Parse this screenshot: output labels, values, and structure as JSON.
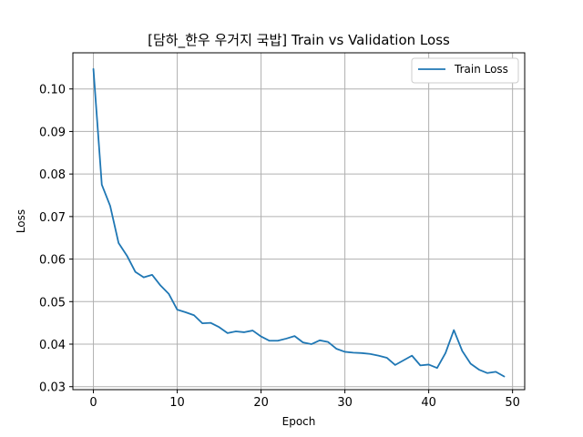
{
  "chart_data": {
    "type": "line",
    "title": "[담하_한우 우거지 국밥] Train vs Validation Loss",
    "xlabel": "Epoch",
    "ylabel": "Loss",
    "xlim": [
      -2.45,
      51.45
    ],
    "ylim": [
      0.0293,
      0.1085
    ],
    "xticks": [
      0,
      10,
      20,
      30,
      40,
      50
    ],
    "yticks": [
      0.03,
      0.04,
      0.05,
      0.06,
      0.07,
      0.08,
      0.09,
      0.1
    ],
    "ytick_labels": [
      "0.03",
      "0.04",
      "0.05",
      "0.06",
      "0.07",
      "0.08",
      "0.09",
      "0.10"
    ],
    "grid": true,
    "legend_position": "upper-right",
    "series": [
      {
        "name": "Train Loss",
        "color": "#1f77b4",
        "x": [
          0,
          1,
          2,
          3,
          4,
          5,
          6,
          7,
          8,
          9,
          10,
          11,
          12,
          13,
          14,
          15,
          16,
          17,
          18,
          19,
          20,
          21,
          22,
          23,
          24,
          25,
          26,
          27,
          28,
          29,
          30,
          31,
          32,
          33,
          34,
          35,
          36,
          37,
          38,
          39,
          40,
          41,
          42,
          43,
          44,
          45,
          46,
          47,
          48,
          49
        ],
        "values": [
          0.1047,
          0.0775,
          0.0725,
          0.0638,
          0.0608,
          0.057,
          0.0557,
          0.0563,
          0.0538,
          0.0518,
          0.0481,
          0.0475,
          0.0468,
          0.0449,
          0.045,
          0.044,
          0.0426,
          0.043,
          0.0428,
          0.0432,
          0.0418,
          0.0408,
          0.0408,
          0.0413,
          0.0419,
          0.0404,
          0.04,
          0.0409,
          0.0405,
          0.0389,
          0.0382,
          0.038,
          0.0379,
          0.0377,
          0.0373,
          0.0368,
          0.0351,
          0.0362,
          0.0373,
          0.035,
          0.0352,
          0.0344,
          0.0379,
          0.0433,
          0.0384,
          0.0354,
          0.034,
          0.0332,
          0.0335,
          0.0324
        ]
      }
    ]
  }
}
